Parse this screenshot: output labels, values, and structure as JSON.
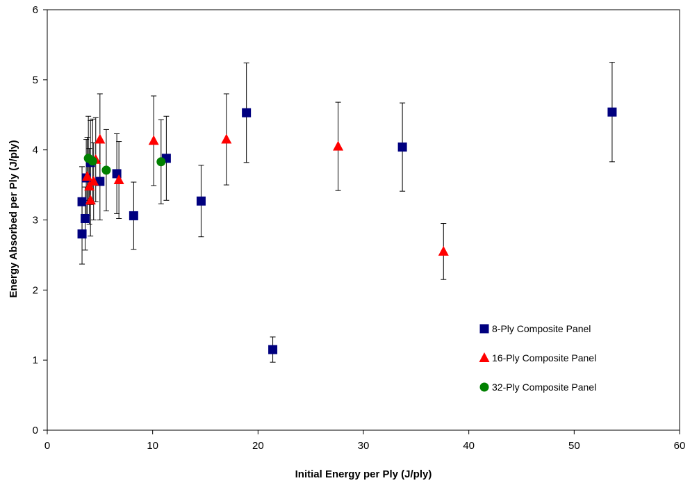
{
  "chart_data": {
    "type": "scatter",
    "title": "",
    "xlabel": "Initial Energy per Ply (J/ply)",
    "ylabel": "Energy Absorbed per Ply (J/ply)",
    "xlim": [
      0,
      60
    ],
    "ylim": [
      0,
      6
    ],
    "x_ticks": [
      "0",
      "10",
      "20",
      "30",
      "40",
      "50",
      "60"
    ],
    "y_ticks": [
      "0",
      "1",
      "2",
      "3",
      "4",
      "5",
      "6"
    ],
    "grid": false,
    "legend_position": "bottom-right",
    "series": [
      {
        "name": "8-Ply Composite Panel",
        "marker": "square",
        "color": "#00007f",
        "points": [
          {
            "x": 3.3,
            "y": 2.8,
            "err": 0.43
          },
          {
            "x": 3.3,
            "y": 3.26,
            "err": 0.5
          },
          {
            "x": 3.6,
            "y": 3.02,
            "err": 0.45
          },
          {
            "x": 3.7,
            "y": 3.6,
            "err": 0.55
          },
          {
            "x": 4.1,
            "y": 3.82,
            "err": 0.6
          },
          {
            "x": 5.0,
            "y": 3.55,
            "err": 0.55
          },
          {
            "x": 6.6,
            "y": 3.66,
            "err": 0.57
          },
          {
            "x": 8.2,
            "y": 3.06,
            "err": 0.48
          },
          {
            "x": 11.3,
            "y": 3.88,
            "err": 0.6
          },
          {
            "x": 14.6,
            "y": 3.27,
            "err": 0.51
          },
          {
            "x": 18.9,
            "y": 4.53,
            "err": 0.71
          },
          {
            "x": 21.4,
            "y": 1.15,
            "err": 0.18
          },
          {
            "x": 33.7,
            "y": 4.04,
            "err": 0.63
          },
          {
            "x": 53.6,
            "y": 4.54,
            "err": 0.71
          }
        ]
      },
      {
        "name": "16-Ply Composite Panel",
        "marker": "triangle",
        "color": "#ff0000",
        "points": [
          {
            "x": 3.8,
            "y": 3.62,
            "err": 0.56
          },
          {
            "x": 4.0,
            "y": 3.48,
            "err": 0.54
          },
          {
            "x": 4.1,
            "y": 3.28,
            "err": 0.51
          },
          {
            "x": 4.4,
            "y": 3.55,
            "err": 0.55
          },
          {
            "x": 4.6,
            "y": 3.86,
            "err": 0.6
          },
          {
            "x": 5.0,
            "y": 4.15,
            "err": 0.65
          },
          {
            "x": 6.8,
            "y": 3.57,
            "err": 0.55
          },
          {
            "x": 10.1,
            "y": 4.13,
            "err": 0.64
          },
          {
            "x": 17.0,
            "y": 4.15,
            "err": 0.65
          },
          {
            "x": 27.6,
            "y": 4.05,
            "err": 0.63
          },
          {
            "x": 37.6,
            "y": 2.55,
            "err": 0.4
          }
        ]
      },
      {
        "name": "32-Ply Composite Panel",
        "marker": "circle",
        "color": "#008000",
        "points": [
          {
            "x": 3.9,
            "y": 3.88,
            "err": 0.6
          },
          {
            "x": 4.3,
            "y": 3.84,
            "err": 0.6
          },
          {
            "x": 5.6,
            "y": 3.71,
            "err": 0.58
          },
          {
            "x": 10.8,
            "y": 3.83,
            "err": 0.6
          }
        ]
      }
    ]
  }
}
